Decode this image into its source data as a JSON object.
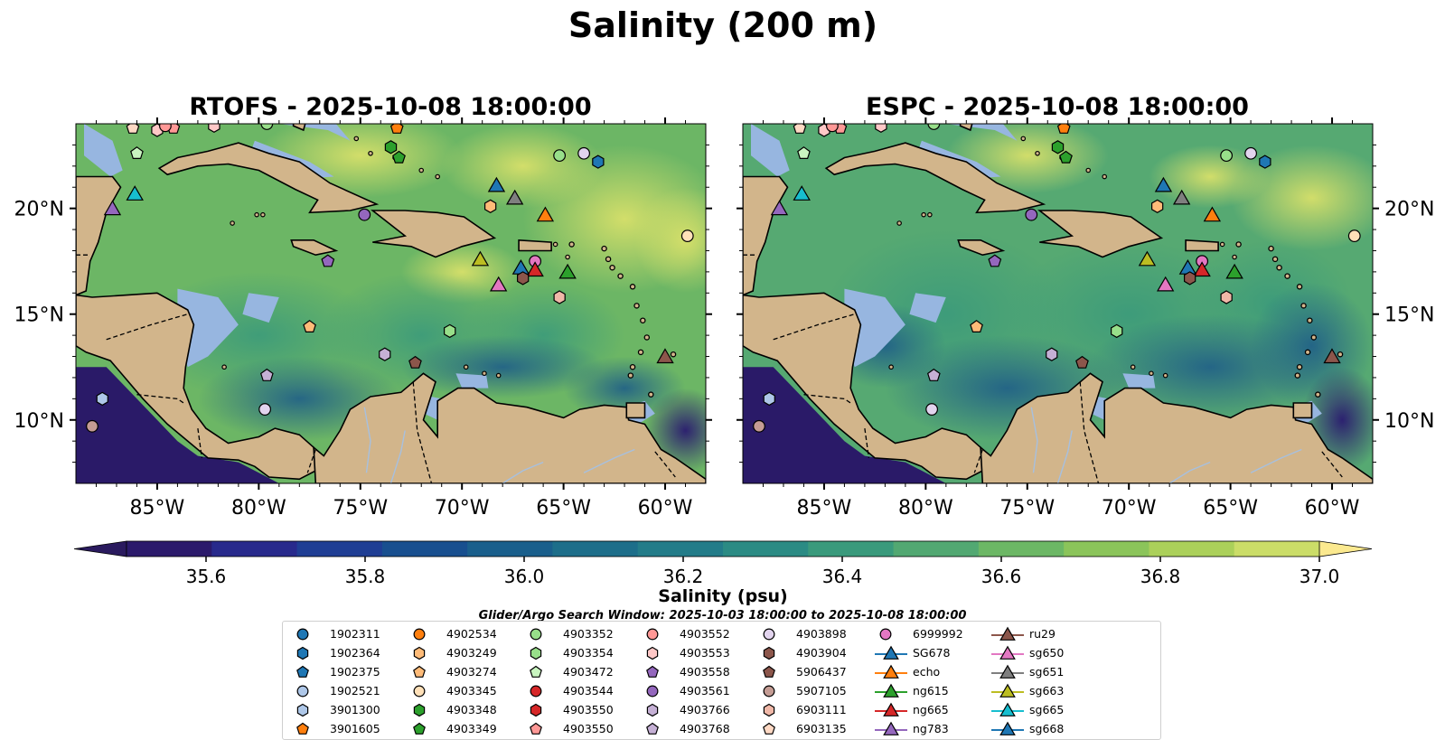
{
  "chart_data": {
    "type": "map",
    "title": "Salinity (200 m)",
    "variable": "Salinity",
    "depth": "200 m",
    "panels": [
      {
        "name": "RTOFS",
        "title": "RTOFS - 2025-10-08 18:00:00"
      },
      {
        "name": "ESPC",
        "title": "ESPC - 2025-10-08 18:00:00"
      }
    ],
    "lon_range": [
      -89,
      -58
    ],
    "lat_range": [
      7,
      24
    ],
    "lon_ticks": [
      -85,
      -80,
      -75,
      -70,
      -65,
      -60
    ],
    "lon_tick_labels": [
      "85°W",
      "80°W",
      "75°W",
      "70°W",
      "65°W",
      "60°W"
    ],
    "lat_ticks": [
      10,
      15,
      20
    ],
    "lat_tick_labels": [
      "10°N",
      "15°N",
      "20°N"
    ],
    "colorbar": {
      "label": "Salinity (psu)",
      "min": 35.5,
      "max": 37.0,
      "step": 0.1,
      "extend": "both",
      "ticks": [
        35.6,
        35.8,
        36.0,
        36.2,
        36.4,
        36.6,
        36.8,
        37.0
      ],
      "tick_labels": [
        "35.6",
        "35.8",
        "36.0",
        "36.2",
        "36.4",
        "36.6",
        "36.8",
        "37.0"
      ],
      "colors": [
        "#2b1a6b",
        "#282a8c",
        "#1f3e94",
        "#184f8f",
        "#1a5f8c",
        "#1d6e8a",
        "#237c89",
        "#2b8b84",
        "#3a9a7c",
        "#52a872",
        "#6cb765",
        "#8bc45a",
        "#abd05a",
        "#cbdd68"
      ],
      "under_color": "#2a1a5e",
      "over_color": "#fbe98f"
    },
    "search_window": "Glider/Argo Search Window: 2025-10-03 18:00:00 to 2025-10-08 18:00:00",
    "platforms": [
      {
        "id": "1902311",
        "kind": "argo",
        "marker": "circle",
        "color": "#1f77b4"
      },
      {
        "id": "1902364",
        "kind": "argo",
        "marker": "hexagon",
        "color": "#1f77b4"
      },
      {
        "id": "1902375",
        "kind": "argo",
        "marker": "pentagon",
        "color": "#1f77b4"
      },
      {
        "id": "1902521",
        "kind": "argo",
        "marker": "circle",
        "color": "#aec7e8"
      },
      {
        "id": "3901300",
        "kind": "argo",
        "marker": "hexagon",
        "color": "#aec7e8"
      },
      {
        "id": "3901605",
        "kind": "argo",
        "marker": "pentagon",
        "color": "#ff7f0e"
      },
      {
        "id": "4902534",
        "kind": "argo",
        "marker": "circle",
        "color": "#ff7f0e"
      },
      {
        "id": "4903249",
        "kind": "argo",
        "marker": "hexagon",
        "color": "#ffbb78"
      },
      {
        "id": "4903274",
        "kind": "argo",
        "marker": "pentagon",
        "color": "#ffbb78"
      },
      {
        "id": "4903345",
        "kind": "argo",
        "marker": "circle",
        "color": "#ffe0b8"
      },
      {
        "id": "4903348",
        "kind": "argo",
        "marker": "hexagon",
        "color": "#2ca02c"
      },
      {
        "id": "4903349",
        "kind": "argo",
        "marker": "pentagon",
        "color": "#2ca02c"
      },
      {
        "id": "4903352",
        "kind": "argo",
        "marker": "circle",
        "color": "#98df8a"
      },
      {
        "id": "4903354",
        "kind": "argo",
        "marker": "hexagon",
        "color": "#98df8a"
      },
      {
        "id": "4903472",
        "kind": "argo",
        "marker": "pentagon",
        "color": "#c9f5c0"
      },
      {
        "id": "4903544",
        "kind": "argo",
        "marker": "circle",
        "color": "#d62728"
      },
      {
        "id": "4903550",
        "kind": "argo",
        "marker": "hexagon",
        "color": "#d62728"
      },
      {
        "id": "4903550",
        "kind": "argo",
        "marker": "pentagon",
        "color": "#ff9896"
      },
      {
        "id": "4903552",
        "kind": "argo",
        "marker": "circle",
        "color": "#ff9896"
      },
      {
        "id": "4903553",
        "kind": "argo",
        "marker": "hexagon",
        "color": "#ffc8c7"
      },
      {
        "id": "4903558",
        "kind": "argo",
        "marker": "pentagon",
        "color": "#9467bd"
      },
      {
        "id": "4903561",
        "kind": "argo",
        "marker": "circle",
        "color": "#9467bd"
      },
      {
        "id": "4903766",
        "kind": "argo",
        "marker": "hexagon",
        "color": "#c5b0d5"
      },
      {
        "id": "4903768",
        "kind": "argo",
        "marker": "pentagon",
        "color": "#c5b0d5"
      },
      {
        "id": "4903898",
        "kind": "argo",
        "marker": "circle",
        "color": "#e2d4ee"
      },
      {
        "id": "4903904",
        "kind": "argo",
        "marker": "hexagon",
        "color": "#8c564b"
      },
      {
        "id": "5906437",
        "kind": "argo",
        "marker": "pentagon",
        "color": "#8c564b"
      },
      {
        "id": "5907105",
        "kind": "argo",
        "marker": "circle",
        "color": "#c49c94"
      },
      {
        "id": "6903111",
        "kind": "argo",
        "marker": "hexagon",
        "color": "#f0b8a8"
      },
      {
        "id": "6903135",
        "kind": "argo",
        "marker": "pentagon",
        "color": "#ffd9c4"
      },
      {
        "id": "6999992",
        "kind": "argo",
        "marker": "circle",
        "color": "#e377c2"
      },
      {
        "id": "SG678",
        "kind": "glider",
        "marker": "triangle",
        "color": "#1f77b4"
      },
      {
        "id": "echo",
        "kind": "glider",
        "marker": "triangle",
        "color": "#ff7f0e"
      },
      {
        "id": "ng615",
        "kind": "glider",
        "marker": "triangle",
        "color": "#2ca02c"
      },
      {
        "id": "ng665",
        "kind": "glider",
        "marker": "triangle",
        "color": "#d62728"
      },
      {
        "id": "ng783",
        "kind": "glider",
        "marker": "triangle",
        "color": "#9467bd"
      },
      {
        "id": "ru29",
        "kind": "glider",
        "marker": "triangle",
        "color": "#8c564b"
      },
      {
        "id": "sg650",
        "kind": "glider",
        "marker": "triangle",
        "color": "#e377c2"
      },
      {
        "id": "sg651",
        "kind": "glider",
        "marker": "triangle",
        "color": "#7f7f7f"
      },
      {
        "id": "sg663",
        "kind": "glider",
        "marker": "triangle",
        "color": "#bcbd22"
      },
      {
        "id": "sg665",
        "kind": "glider",
        "marker": "triangle",
        "color": "#17becf"
      },
      {
        "id": "sg668",
        "kind": "glider",
        "marker": "triangle",
        "color": "#1f77b4"
      }
    ],
    "observations": [
      {
        "platform": 27,
        "lon": -88.2,
        "lat": 9.7
      },
      {
        "platform": 4,
        "lon": -87.7,
        "lat": 11.0
      },
      {
        "platform": 35,
        "lon": -87.2,
        "lat": 20.0
      },
      {
        "platform": 40,
        "lon": -86.1,
        "lat": 20.7
      },
      {
        "platform": 14,
        "lon": -86.0,
        "lat": 22.6
      },
      {
        "platform": 29,
        "lon": -86.2,
        "lat": 23.8
      },
      {
        "platform": 17,
        "lon": -84.2,
        "lat": 23.8
      },
      {
        "platform": 19,
        "lon": -85.0,
        "lat": 23.7
      },
      {
        "platform": 18,
        "lon": -84.6,
        "lat": 23.9
      },
      {
        "platform": 19,
        "lon": -82.2,
        "lat": 23.9
      },
      {
        "platform": 12,
        "lon": -79.6,
        "lat": 24.0
      },
      {
        "platform": 5,
        "lon": -73.2,
        "lat": 23.8
      },
      {
        "platform": 10,
        "lon": -73.5,
        "lat": 22.9
      },
      {
        "platform": 11,
        "lon": -73.1,
        "lat": 22.4
      },
      {
        "platform": 21,
        "lon": -74.8,
        "lat": 19.7
      },
      {
        "platform": 20,
        "lon": -76.6,
        "lat": 17.5
      },
      {
        "platform": 8,
        "lon": -77.5,
        "lat": 14.4
      },
      {
        "platform": 22,
        "lon": -73.8,
        "lat": 13.1
      },
      {
        "platform": 23,
        "lon": -79.6,
        "lat": 12.1
      },
      {
        "platform": 24,
        "lon": -79.7,
        "lat": 10.5
      },
      {
        "platform": 26,
        "lon": -72.3,
        "lat": 12.7
      },
      {
        "platform": 13,
        "lon": -70.6,
        "lat": 14.2
      },
      {
        "platform": 7,
        "lon": -68.6,
        "lat": 20.1
      },
      {
        "platform": 31,
        "lon": -68.3,
        "lat": 21.1
      },
      {
        "platform": 38,
        "lon": -67.4,
        "lat": 20.5
      },
      {
        "platform": 32,
        "lon": -65.9,
        "lat": 19.7
      },
      {
        "platform": 39,
        "lon": -69.1,
        "lat": 17.6
      },
      {
        "platform": 37,
        "lon": -68.2,
        "lat": 16.4
      },
      {
        "platform": 30,
        "lon": -66.4,
        "lat": 17.5
      },
      {
        "platform": 34,
        "lon": -66.4,
        "lat": 17.1
      },
      {
        "platform": 41,
        "lon": -67.1,
        "lat": 17.2
      },
      {
        "platform": 25,
        "lon": -67.0,
        "lat": 16.7
      },
      {
        "platform": 33,
        "lon": -64.8,
        "lat": 17.0
      },
      {
        "platform": 28,
        "lon": -65.2,
        "lat": 15.8
      },
      {
        "platform": 36,
        "lon": -60.0,
        "lat": 13.0
      },
      {
        "platform": 12,
        "lon": -65.2,
        "lat": 22.5
      },
      {
        "platform": 24,
        "lon": -64.0,
        "lat": 22.6
      },
      {
        "platform": 1,
        "lon": -63.3,
        "lat": 22.2
      },
      {
        "platform": 9,
        "lon": -58.9,
        "lat": 18.7
      }
    ]
  }
}
